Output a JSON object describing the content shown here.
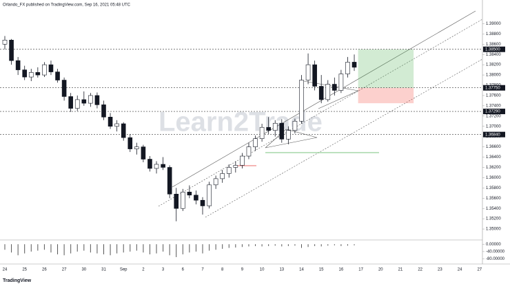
{
  "chart_data": {
    "type": "candlestick",
    "title": "Orlando_FX published on TradingView.com, Sep 16, 2021 05:48 UTC",
    "watermark": "Learn2Trade",
    "footer": "TradingView",
    "categories": [
      "24",
      null,
      null,
      "25",
      null,
      null,
      "26",
      null,
      null,
      "27",
      null,
      null,
      "30",
      null,
      null,
      "31",
      null,
      null,
      "Sep",
      null,
      null,
      "2",
      null,
      null,
      "3",
      null,
      null,
      "6",
      null,
      null,
      "7",
      null,
      null,
      "8",
      null,
      null,
      "9",
      null,
      null,
      "10",
      null,
      null,
      "13",
      null,
      null,
      "14",
      null,
      null,
      "15",
      null,
      null,
      "16",
      null,
      null,
      "17",
      null,
      null,
      "20",
      null,
      null,
      "21",
      null,
      null,
      "22",
      null,
      null,
      "23",
      null,
      null,
      "24",
      null,
      null,
      "27"
    ],
    "open": [
      1.386,
      1.3868,
      1.3828,
      1.381,
      1.3796,
      1.3805,
      1.38,
      1.382,
      1.3806,
      1.379,
      1.3758,
      1.3735,
      1.3752,
      1.3745,
      1.376,
      1.3742,
      1.3718,
      1.37,
      1.3705,
      1.3678,
      1.3656,
      1.366,
      1.3636,
      1.3618,
      1.3626,
      1.362,
      1.3568,
      1.354,
      1.3572,
      1.3566,
      1.3556,
      1.3545,
      1.3586,
      1.3598,
      1.3608,
      1.362,
      1.3624,
      1.3642,
      1.366,
      1.3676,
      1.3698,
      1.3692,
      1.3706,
      1.3675,
      1.3692,
      1.371,
      1.379,
      1.382,
      1.3778,
      1.3752,
      1.3782,
      1.377,
      1.3802,
      1.3825,
      null,
      null,
      null,
      null,
      null,
      null,
      null,
      null,
      null,
      null,
      null,
      null,
      null,
      null,
      null,
      null,
      null,
      null,
      null
    ],
    "high": [
      1.3876,
      1.387,
      1.3835,
      1.3818,
      1.3812,
      1.3815,
      1.3825,
      1.3828,
      1.3812,
      1.3795,
      1.3765,
      1.376,
      1.3768,
      1.3765,
      1.3766,
      1.375,
      1.3726,
      1.3712,
      1.3708,
      1.3685,
      1.3668,
      1.3664,
      1.3642,
      1.3632,
      1.364,
      1.3624,
      1.358,
      1.3578,
      1.3585,
      1.3575,
      1.3562,
      1.3592,
      1.3604,
      1.3615,
      1.3626,
      1.3632,
      1.3648,
      1.3668,
      1.3682,
      1.3705,
      1.3718,
      1.3712,
      1.3714,
      1.37,
      1.3715,
      1.38,
      1.3842,
      1.3828,
      1.38,
      1.379,
      1.3795,
      1.381,
      1.3835,
      1.384,
      null,
      null,
      null,
      null,
      null,
      null,
      null,
      null,
      null,
      null,
      null,
      null,
      null,
      null,
      null,
      null,
      null,
      null,
      null
    ],
    "low": [
      1.385,
      1.382,
      1.38,
      1.379,
      1.3788,
      1.3795,
      1.3796,
      1.38,
      1.3785,
      1.375,
      1.3728,
      1.373,
      1.374,
      1.3738,
      1.3735,
      1.3712,
      1.3695,
      1.369,
      1.3672,
      1.365,
      1.3645,
      1.363,
      1.3612,
      1.3608,
      1.3615,
      1.356,
      1.3515,
      1.3535,
      1.356,
      1.3548,
      1.3528,
      1.354,
      1.3578,
      1.359,
      1.36,
      1.361,
      1.3618,
      1.3636,
      1.3652,
      1.367,
      1.3685,
      1.368,
      1.3668,
      1.3665,
      1.3686,
      1.3705,
      1.3782,
      1.377,
      1.3745,
      1.3748,
      1.376,
      1.3765,
      1.3795,
      1.3808,
      null,
      null,
      null,
      null,
      null,
      null,
      null,
      null,
      null,
      null,
      null,
      null,
      null,
      null,
      null,
      null,
      null,
      null,
      null
    ],
    "close": [
      1.3868,
      1.3828,
      1.381,
      1.3796,
      1.3805,
      1.38,
      1.382,
      1.3806,
      1.379,
      1.3758,
      1.3735,
      1.3752,
      1.3745,
      1.376,
      1.3742,
      1.3718,
      1.37,
      1.3705,
      1.3678,
      1.3656,
      1.366,
      1.3636,
      1.3618,
      1.3626,
      1.362,
      1.3568,
      1.354,
      1.3572,
      1.3566,
      1.3556,
      1.3545,
      1.3586,
      1.3598,
      1.3608,
      1.362,
      1.3624,
      1.3642,
      1.366,
      1.3676,
      1.3698,
      1.3692,
      1.3706,
      1.3675,
      1.3692,
      1.371,
      1.379,
      1.382,
      1.3778,
      1.3752,
      1.3782,
      1.377,
      1.3802,
      1.3825,
      1.3815,
      null,
      null,
      null,
      null,
      null,
      null,
      null,
      null,
      null,
      null,
      null,
      null,
      null,
      null,
      null,
      null,
      null,
      null,
      null
    ],
    "up_color": "#ffffff",
    "down_color": "#131722",
    "ylim": [
      1.348,
      1.393
    ],
    "yticks": [
      {
        "value": 1.35,
        "label": "1.35000"
      },
      {
        "value": 1.352,
        "label": "1.35200"
      },
      {
        "value": 1.354,
        "label": "1.35400"
      },
      {
        "value": 1.356,
        "label": "1.35600"
      },
      {
        "value": 1.358,
        "label": "1.35800"
      },
      {
        "value": 1.36,
        "label": "1.36000"
      },
      {
        "value": 1.362,
        "label": "1.36200"
      },
      {
        "value": 1.364,
        "label": "1.36400"
      },
      {
        "value": 1.366,
        "label": "1.36600"
      },
      {
        "value": 1.368,
        "label": "1.36800"
      },
      {
        "value": 1.37,
        "label": "1.37000"
      },
      {
        "value": 1.372,
        "label": "1.37200"
      },
      {
        "value": 1.374,
        "label": "1.37400"
      },
      {
        "value": 1.376,
        "label": "1.37600"
      },
      {
        "value": 1.378,
        "label": "1.37800"
      },
      {
        "value": 1.38,
        "label": "1.38000"
      },
      {
        "value": 1.382,
        "label": "1.38200"
      },
      {
        "value": 1.384,
        "label": "1.38400"
      },
      {
        "value": 1.386,
        "label": "1.38600"
      },
      {
        "value": 1.388,
        "label": "1.38800"
      },
      {
        "value": 1.39,
        "label": "1.39000"
      }
    ],
    "levels": [
      {
        "value": 1.385,
        "label": "1.38500"
      },
      {
        "value": 1.3775,
        "label": "1.37750"
      },
      {
        "value": 1.3729,
        "label": "1.37290"
      },
      {
        "value": 1.3684,
        "label": "1.36840"
      }
    ],
    "position": {
      "entry": 1.3775,
      "target": 1.385,
      "stop": 1.3745
    },
    "oscillator": {
      "values": [
        -30,
        -45,
        -60,
        -50,
        -40,
        -35,
        -30,
        -45,
        -55,
        -60,
        -50,
        -40,
        -35,
        -45,
        -50,
        -55,
        -60,
        -50,
        -45,
        -40,
        -35,
        -45,
        -55,
        -50,
        -40,
        -60,
        -70,
        -55,
        -45,
        -40,
        -50,
        -35,
        -30,
        -25,
        -20,
        -18,
        -15,
        -12,
        -10,
        -12,
        -10,
        -8,
        -12,
        -10,
        -8,
        -20,
        -15,
        -10,
        -12,
        -8,
        -6,
        -10,
        -8,
        -6,
        null,
        null,
        null,
        null,
        null,
        null,
        null,
        null,
        null,
        null,
        null,
        null,
        null,
        null,
        null,
        null,
        null,
        null,
        null
      ],
      "ylim": [
        -100,
        12
      ],
      "yticks": [
        {
          "value": 0,
          "label": "0.00000"
        },
        {
          "value": -40,
          "label": "-40.00000"
        },
        {
          "value": -80,
          "label": "-80.00000"
        }
      ]
    }
  }
}
